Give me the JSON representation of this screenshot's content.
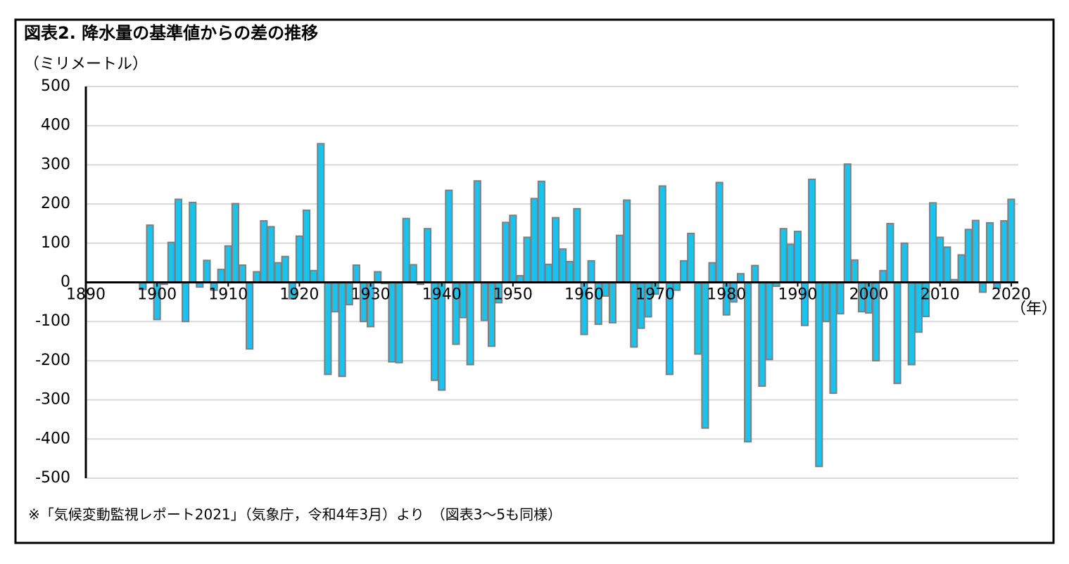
{
  "chart_data": {
    "type": "bar",
    "title": "図表2. 降水量の基準値からの差の推移",
    "y_label": "（ミリメートル）",
    "x_label": "（年）",
    "note": "※「気候変動監視レポート2021」（気象庁，令和4年3月）より　（図表3～5も同様）",
    "color": "#19c3ee",
    "edge_color": "#7f7f7f",
    "grid": true,
    "xlim": [
      1890,
      2021
    ],
    "xticks": [
      1890,
      1900,
      1910,
      1920,
      1930,
      1940,
      1950,
      1960,
      1970,
      1980,
      1990,
      2000,
      2010,
      2020
    ],
    "ylim": [
      -500,
      500
    ],
    "yticks": [
      -500,
      -400,
      -300,
      -200,
      -100,
      0,
      100,
      200,
      300,
      400,
      500
    ],
    "x": [
      1898,
      1899,
      1900,
      1901,
      1902,
      1903,
      1904,
      1905,
      1906,
      1907,
      1908,
      1909,
      1910,
      1911,
      1912,
      1913,
      1914,
      1915,
      1916,
      1917,
      1918,
      1919,
      1920,
      1921,
      1922,
      1923,
      1924,
      1925,
      1926,
      1927,
      1928,
      1929,
      1930,
      1931,
      1932,
      1933,
      1934,
      1935,
      1936,
      1937,
      1938,
      1939,
      1940,
      1941,
      1942,
      1943,
      1944,
      1945,
      1946,
      1947,
      1948,
      1949,
      1950,
      1951,
      1952,
      1953,
      1954,
      1955,
      1956,
      1957,
      1958,
      1959,
      1960,
      1961,
      1962,
      1963,
      1964,
      1965,
      1966,
      1967,
      1968,
      1969,
      1970,
      1971,
      1972,
      1973,
      1974,
      1975,
      1976,
      1977,
      1978,
      1979,
      1980,
      1981,
      1982,
      1983,
      1984,
      1985,
      1986,
      1987,
      1988,
      1989,
      1990,
      1991,
      1992,
      1993,
      1994,
      1995,
      1996,
      1997,
      1998,
      1999,
      2000,
      2001,
      2002,
      2003,
      2004,
      2005,
      2006,
      2007,
      2008,
      2009,
      2010,
      2011,
      2012,
      2013,
      2014,
      2015,
      2016,
      2017,
      2018,
      2019,
      2020
    ],
    "values": [
      -18,
      146,
      -95,
      -5,
      102,
      212,
      -100,
      204,
      -12,
      56,
      -20,
      33,
      93,
      201,
      44,
      -170,
      27,
      157,
      142,
      50,
      66,
      -42,
      118,
      184,
      30,
      354,
      -235,
      -75,
      -240,
      -57,
      44,
      -100,
      -113,
      27,
      -3,
      -203,
      -205,
      163,
      45,
      -5,
      137,
      -250,
      -275,
      235,
      -158,
      -90,
      -210,
      259,
      -97,
      -163,
      -52,
      153,
      171,
      17,
      115,
      214,
      258,
      46,
      165,
      85,
      53,
      188,
      -133,
      55,
      -107,
      -35,
      -103,
      120,
      210,
      -165,
      -117,
      -88,
      -30,
      246,
      -235,
      -20,
      55,
      125,
      -183,
      -372,
      50,
      255,
      -83,
      -50,
      22,
      -407,
      43,
      -265,
      -197,
      -10,
      137,
      97,
      130,
      -110,
      263,
      -470,
      -100,
      -283,
      -80,
      302,
      57,
      -75,
      -78,
      -200,
      30,
      150,
      -258,
      100,
      -210,
      -127,
      -87,
      203,
      115,
      90,
      7,
      70,
      135,
      158,
      -25,
      152,
      -15,
      157,
      212
    ]
  }
}
